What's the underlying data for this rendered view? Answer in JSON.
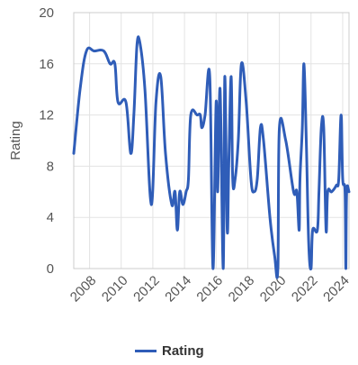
{
  "chart_data": {
    "type": "line",
    "title": "",
    "xlabel": "",
    "ylabel": "Rating",
    "xlim": [
      2007.0,
      2024.4
    ],
    "ylim": [
      0,
      20
    ],
    "y_ticks": [
      0,
      4,
      8,
      12,
      16,
      20
    ],
    "x_ticks": [
      2008,
      2010,
      2012,
      2014,
      2016,
      2018,
      2020,
      2022,
      2024
    ],
    "grid": true,
    "legend_position": "bottom",
    "series": [
      {
        "name": "Rating",
        "color": "#2f5db8",
        "points": [
          [
            2007.0,
            9
          ],
          [
            2007.4,
            14
          ],
          [
            2007.8,
            17
          ],
          [
            2008.3,
            17
          ],
          [
            2008.9,
            17
          ],
          [
            2009.3,
            16
          ],
          [
            2009.6,
            16
          ],
          [
            2009.8,
            13
          ],
          [
            2010.3,
            13
          ],
          [
            2010.6,
            9
          ],
          [
            2010.8,
            12
          ],
          [
            2011.0,
            17.5
          ],
          [
            2011.2,
            17.5
          ],
          [
            2011.5,
            14
          ],
          [
            2011.9,
            5
          ],
          [
            2012.2,
            13
          ],
          [
            2012.5,
            15
          ],
          [
            2012.8,
            9
          ],
          [
            2013.2,
            5
          ],
          [
            2013.4,
            6
          ],
          [
            2013.55,
            3
          ],
          [
            2013.7,
            6
          ],
          [
            2013.9,
            5
          ],
          [
            2014.1,
            6
          ],
          [
            2014.25,
            7
          ],
          [
            2014.4,
            12
          ],
          [
            2014.8,
            12
          ],
          [
            2015.0,
            12
          ],
          [
            2015.1,
            11
          ],
          [
            2015.3,
            12
          ],
          [
            2015.6,
            15
          ],
          [
            2015.8,
            0
          ],
          [
            2016.0,
            13
          ],
          [
            2016.1,
            6
          ],
          [
            2016.25,
            14
          ],
          [
            2016.45,
            0
          ],
          [
            2016.55,
            15
          ],
          [
            2016.7,
            3
          ],
          [
            2016.8,
            8
          ],
          [
            2016.95,
            15
          ],
          [
            2017.05,
            7
          ],
          [
            2017.2,
            7
          ],
          [
            2017.4,
            10
          ],
          [
            2017.6,
            16
          ],
          [
            2017.9,
            13
          ],
          [
            2018.2,
            7
          ],
          [
            2018.4,
            6
          ],
          [
            2018.6,
            7
          ],
          [
            2018.8,
            11
          ],
          [
            2019.0,
            10
          ],
          [
            2019.4,
            4
          ],
          [
            2019.7,
            1
          ],
          [
            2019.9,
            0
          ],
          [
            2020.0,
            11
          ],
          [
            2020.4,
            10
          ],
          [
            2020.9,
            6
          ],
          [
            2021.1,
            6
          ],
          [
            2021.25,
            3
          ],
          [
            2021.3,
            7
          ],
          [
            2021.45,
            11
          ],
          [
            2021.55,
            16
          ],
          [
            2021.7,
            10
          ],
          [
            2021.85,
            2
          ],
          [
            2022.0,
            0
          ],
          [
            2022.1,
            3
          ],
          [
            2022.4,
            3
          ],
          [
            2022.5,
            6
          ],
          [
            2022.65,
            11
          ],
          [
            2022.8,
            11
          ],
          [
            2022.95,
            3
          ],
          [
            2023.05,
            6
          ],
          [
            2023.3,
            6
          ],
          [
            2023.6,
            6.5
          ],
          [
            2023.75,
            7
          ],
          [
            2023.9,
            12
          ],
          [
            2024.0,
            7
          ],
          [
            2024.15,
            6
          ],
          [
            2024.2,
            0
          ],
          [
            2024.25,
            6
          ],
          [
            2024.4,
            6
          ]
        ]
      }
    ]
  }
}
